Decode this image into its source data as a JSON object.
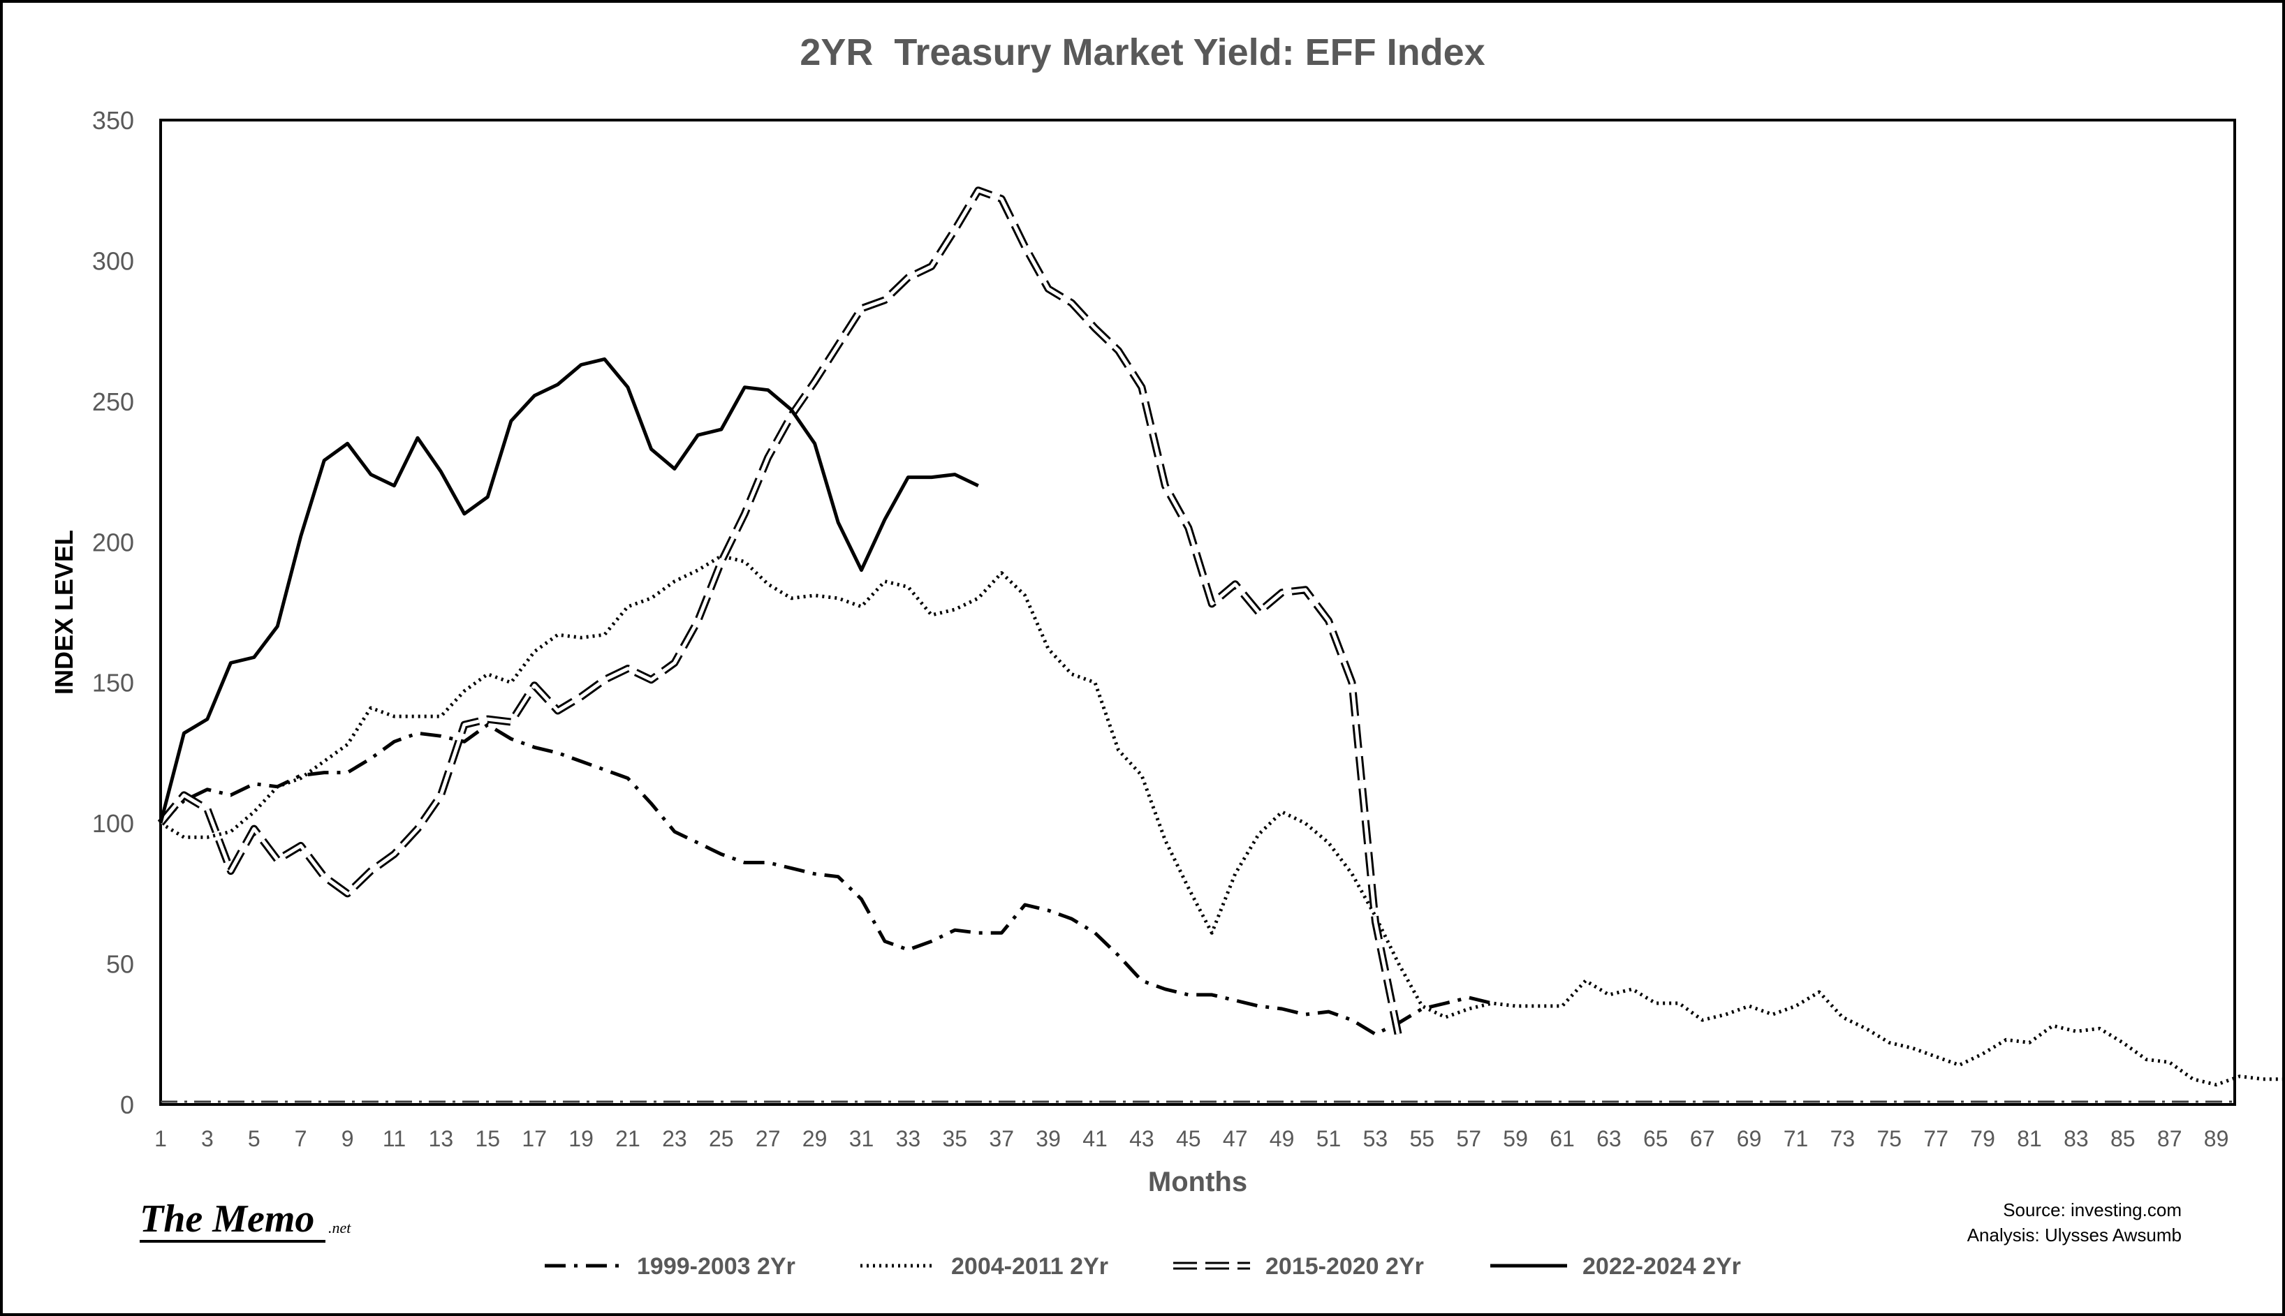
{
  "chart_data": {
    "type": "line",
    "title": "2YR  Treasury Market Yield: EFF Index",
    "xlabel": "Months",
    "ylabel": "INDEX LEVEL",
    "xlim": [
      1,
      90
    ],
    "ylim": [
      0,
      350
    ],
    "y_ticks": [
      "0",
      "50",
      "100",
      "150",
      "200",
      "250",
      "300",
      "350"
    ],
    "x_ticks": [
      "1",
      "3",
      "5",
      "7",
      "9",
      "11",
      "13",
      "15",
      "17",
      "19",
      "21",
      "23",
      "25",
      "27",
      "29",
      "31",
      "33",
      "35",
      "37",
      "39",
      "41",
      "43",
      "45",
      "47",
      "49",
      "51",
      "53",
      "55",
      "57",
      "59",
      "61",
      "63",
      "65",
      "67",
      "69",
      "71",
      "73",
      "75",
      "77",
      "79",
      "81",
      "83",
      "85",
      "87",
      "89"
    ],
    "grid": false,
    "legend_position": "bottom",
    "series": [
      {
        "name": "1999-2003 2Yr",
        "style": "dash-dot",
        "values": [
          100,
          108,
          112,
          110,
          114,
          113,
          117,
          118,
          118,
          123,
          129,
          132,
          131,
          129,
          135,
          130,
          127,
          125,
          122,
          119,
          116,
          107,
          97,
          93,
          89,
          86,
          86,
          84,
          82,
          81,
          73,
          58,
          55,
          58,
          62,
          61,
          61,
          71,
          69,
          66,
          61,
          53,
          44,
          41,
          39,
          39,
          37,
          35,
          34,
          32,
          33,
          30,
          25,
          29,
          34,
          36,
          38,
          36
        ]
      },
      {
        "name": "2004-2011 2Yr",
        "style": "dotted",
        "values": [
          100,
          95,
          95,
          97,
          104,
          113,
          116,
          122,
          128,
          141,
          138,
          138,
          138,
          147,
          153,
          150,
          161,
          167,
          166,
          167,
          177,
          180,
          186,
          190,
          195,
          193,
          185,
          180,
          181,
          180,
          177,
          186,
          184,
          174,
          176,
          180,
          189,
          181,
          162,
          153,
          150,
          126,
          117,
          94,
          77,
          61,
          82,
          96,
          104,
          100,
          93,
          82,
          67,
          50,
          35,
          31,
          34,
          36,
          35,
          35,
          35,
          44,
          39,
          41,
          36,
          36,
          30,
          32,
          35,
          32,
          35,
          40,
          31,
          27,
          22,
          20,
          17,
          14,
          18,
          23,
          22,
          28,
          26,
          27,
          22,
          16,
          15,
          9,
          7,
          10,
          9,
          9
        ]
      },
      {
        "name": "2015-2020 2Yr",
        "style": "dashed",
        "values": [
          100,
          110,
          105,
          83,
          98,
          87,
          92,
          81,
          75,
          83,
          89,
          98,
          110,
          135,
          137,
          136,
          149,
          140,
          145,
          151,
          155,
          151,
          157,
          172,
          193,
          210,
          230,
          245,
          257,
          270,
          283,
          286,
          294,
          298,
          311,
          325,
          322,
          305,
          290,
          285,
          276,
          268,
          255,
          220,
          205,
          178,
          185,
          175,
          182,
          183,
          172,
          150,
          65,
          24
        ]
      },
      {
        "name": "2022-2024 2Yr",
        "style": "solid",
        "values": [
          100,
          132,
          137,
          157,
          159,
          170,
          202,
          229,
          235,
          224,
          220,
          237,
          225,
          210,
          216,
          243,
          252,
          256,
          263,
          265,
          255,
          233,
          226,
          238,
          240,
          255,
          254,
          247,
          235,
          207,
          190,
          208,
          223,
          223,
          224,
          220
        ]
      }
    ]
  },
  "branding": {
    "logo_text": "The Memo",
    "logo_suffix": ".net"
  },
  "source_note": {
    "line1": "Source: investing.com",
    "line2": "Analysis: Ulysses Awsumb"
  }
}
